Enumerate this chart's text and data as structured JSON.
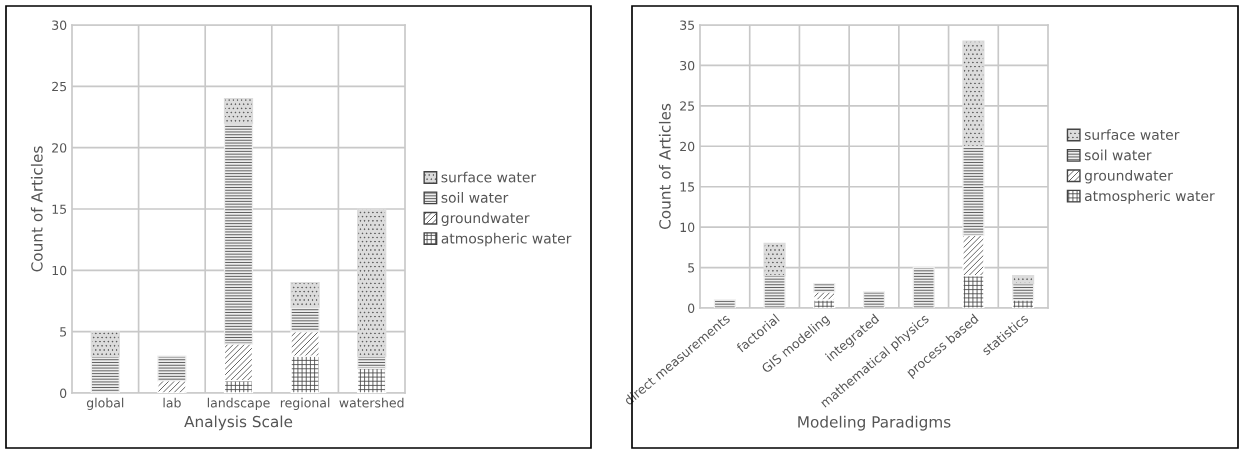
{
  "chart_data": [
    {
      "type": "bar",
      "stacked": true,
      "xlabel": "Analysis Scale",
      "ylabel": "Count of Articles",
      "categories": [
        "global",
        "lab",
        "landscape",
        "regional",
        "watershed"
      ],
      "ylim": [
        0,
        30
      ],
      "yticks": [
        0,
        5,
        10,
        15,
        20,
        25,
        30
      ],
      "grid": true,
      "legend": "right",
      "series": [
        {
          "name": "atmospheric water",
          "color": "#ffffff",
          "values": [
            0,
            0,
            1,
            3,
            2
          ]
        },
        {
          "name": "groundwater",
          "color": "#ffffff",
          "values": [
            0,
            1,
            3,
            2,
            0
          ]
        },
        {
          "name": "soil water",
          "color": "#eeeeee",
          "values": [
            3,
            2,
            18,
            2,
            1
          ]
        },
        {
          "name": "surface water",
          "color": "#dcdcdc",
          "values": [
            2,
            0,
            2,
            2,
            12
          ]
        }
      ]
    },
    {
      "type": "bar",
      "stacked": true,
      "xlabel": "Modeling Paradigms",
      "ylabel": "Count of Articles",
      "categories": [
        "direct measurements",
        "factorial",
        "GIS modeling",
        "integrated",
        "mathematical physics",
        "process based",
        "statistics"
      ],
      "ylim": [
        0,
        35
      ],
      "yticks": [
        0,
        5,
        10,
        15,
        20,
        25,
        30,
        35
      ],
      "grid": true,
      "legend": "right",
      "series": [
        {
          "name": "atmospheric water",
          "color": "#ffffff",
          "values": [
            0,
            0,
            1,
            0,
            0,
            4,
            1
          ]
        },
        {
          "name": "groundwater",
          "color": "#ffffff",
          "values": [
            0,
            0,
            1,
            0,
            0,
            5,
            0
          ]
        },
        {
          "name": "soil water",
          "color": "#eeeeee",
          "values": [
            1,
            4,
            1,
            2,
            5,
            11,
            2
          ]
        },
        {
          "name": "surface water",
          "color": "#dcdcdc",
          "values": [
            0,
            4,
            0,
            0,
            0,
            13,
            1
          ]
        }
      ]
    }
  ]
}
